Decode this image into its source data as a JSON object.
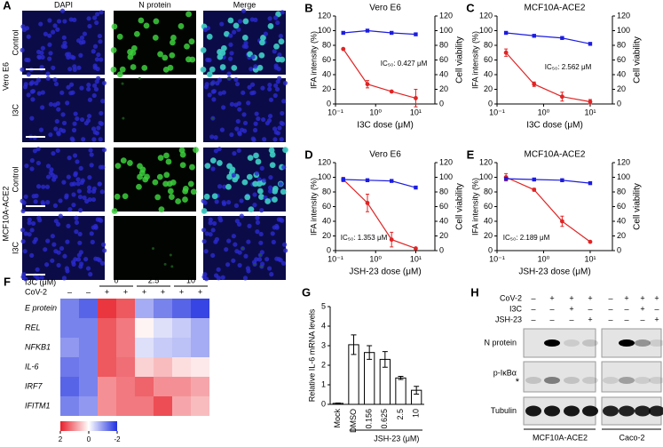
{
  "panel_a": {
    "letter": "A",
    "columns": [
      "DAPI",
      "N protein",
      "Merge"
    ],
    "groups": [
      {
        "name": "Vero E6",
        "rows": [
          "Control",
          "I3C"
        ]
      },
      {
        "name": "MCF10A-ACE2",
        "rows": [
          "Control",
          "I3C"
        ]
      }
    ]
  },
  "chart_data": [
    {
      "type": "line",
      "panel": "B",
      "title": "Vero E6",
      "x_label": "I3C dose (μM)",
      "y_label": "IFA intensity (%)",
      "y2_label": "Cell viability",
      "annotation": "IC₅₀: 0.427 μM",
      "log_x": true,
      "x": [
        0.156,
        0.625,
        2.5,
        10
      ],
      "xlim": [
        0.1,
        30
      ],
      "xticks": [
        {
          "value": 0.1,
          "label": "10⁻¹"
        },
        {
          "value": 1,
          "label": "10⁰"
        },
        {
          "value": 10,
          "label": "10¹"
        }
      ],
      "ylim": [
        0,
        120
      ],
      "yticks": [
        0,
        20,
        40,
        60,
        80,
        100,
        120
      ],
      "y2lim": [
        0,
        120
      ],
      "y2ticks": [
        0,
        20,
        40,
        60,
        80,
        100,
        120
      ],
      "series": [
        {
          "color": "#e02424",
          "values": [
            75,
            27,
            17,
            8
          ],
          "errors": [
            0,
            5,
            0,
            12
          ]
        },
        {
          "color": "#1c1ce0",
          "axis": "y2",
          "values": [
            97,
            100,
            97,
            95
          ]
        }
      ]
    },
    {
      "type": "line",
      "panel": "C",
      "title": "MCF10A-ACE2",
      "x_label": "I3C dose (μM)",
      "y_label": "IFA intensity (%)",
      "y2_label": "Cell viability",
      "annotation": "IC₅₀: 2.562 μM",
      "log_x": true,
      "x": [
        0.156,
        0.625,
        2.5,
        10
      ],
      "xlim": [
        0.1,
        30
      ],
      "xticks": [
        {
          "value": 0.1,
          "label": "10⁻¹"
        },
        {
          "value": 1,
          "label": "10⁰"
        },
        {
          "value": 10,
          "label": "10¹"
        }
      ],
      "ylim": [
        0,
        120
      ],
      "yticks": [
        0,
        20,
        40,
        60,
        80,
        100,
        120
      ],
      "y2lim": [
        0,
        120
      ],
      "y2ticks": [
        0,
        20,
        40,
        60,
        80,
        100,
        120
      ],
      "series": [
        {
          "color": "#e02424",
          "values": [
            70,
            27,
            10,
            3
          ],
          "errors": [
            5,
            3,
            6,
            3
          ]
        },
        {
          "color": "#1c1ce0",
          "axis": "y2",
          "values": [
            97,
            93,
            90,
            82
          ]
        }
      ]
    },
    {
      "type": "line",
      "panel": "D",
      "title": "Vero E6",
      "x_label": "JSH-23 dose (μM)",
      "y_label": "IFA intensity (%)",
      "y2_label": "Cell viability",
      "annotation": "IC₅₀: 1.353 μM",
      "log_x": true,
      "x": [
        0.156,
        0.625,
        2.5,
        10
      ],
      "xlim": [
        0.1,
        30
      ],
      "xticks": [
        {
          "value": 0.1,
          "label": "10⁻¹"
        },
        {
          "value": 1,
          "label": "10⁰"
        },
        {
          "value": 10,
          "label": "10¹"
        }
      ],
      "ylim": [
        0,
        120
      ],
      "yticks": [
        0,
        20,
        40,
        60,
        80,
        100,
        120
      ],
      "y2lim": [
        0,
        120
      ],
      "y2ticks": [
        0,
        20,
        40,
        60,
        80,
        100,
        120
      ],
      "series": [
        {
          "color": "#e02424",
          "values": [
            97,
            65,
            15,
            3
          ],
          "errors": [
            3,
            12,
            10,
            1
          ]
        },
        {
          "color": "#1c1ce0",
          "axis": "y2",
          "values": [
            97,
            96,
            95,
            86
          ]
        }
      ]
    },
    {
      "type": "line",
      "panel": "E",
      "title": "MCF10A-ACE2",
      "x_label": "JSH-23 dose (μM)",
      "y_label": "IFA intensity (%)",
      "y2_label": "Cell viability",
      "annotation": "IC₅₀: 2.189 μM",
      "log_x": true,
      "x": [
        0.156,
        0.625,
        2.5,
        10
      ],
      "xlim": [
        0.1,
        30
      ],
      "xticks": [
        {
          "value": 0.1,
          "label": "10⁻¹"
        },
        {
          "value": 1,
          "label": "10⁰"
        },
        {
          "value": 10,
          "label": "10¹"
        }
      ],
      "ylim": [
        0,
        120
      ],
      "yticks": [
        0,
        20,
        40,
        60,
        80,
        100,
        120
      ],
      "y2lim": [
        0,
        120
      ],
      "y2ticks": [
        0,
        20,
        40,
        60,
        80,
        100,
        120
      ],
      "series": [
        {
          "color": "#e02424",
          "values": [
            100,
            83,
            40,
            12
          ],
          "errors": [
            5,
            2,
            7,
            1
          ]
        },
        {
          "color": "#1c1ce0",
          "axis": "y2",
          "values": [
            98,
            97,
            96,
            92
          ]
        }
      ]
    },
    {
      "type": "heatmap",
      "panel": "F",
      "dose_label": "I3C (μM)",
      "dose_groups": [
        "0",
        "2.5",
        "10"
      ],
      "cov2_label": "CoV-2",
      "cov2": [
        "–",
        "–",
        "+",
        "+",
        "+",
        "+",
        "+",
        "+"
      ],
      "rows": [
        "E protein",
        "REL",
        "NFKB1",
        "IL-6",
        "IRF7",
        "IFITM1"
      ],
      "values": [
        [
          -1.2,
          -1.5,
          1.8,
          1.5,
          -0.8,
          -1.2,
          -1.5,
          -1.8
        ],
        [
          -1.2,
          -1.2,
          1.5,
          1.2,
          0.1,
          -0.3,
          -0.5,
          -0.8
        ],
        [
          -1.0,
          -1.2,
          1.5,
          1.2,
          -0.3,
          -0.5,
          -0.6,
          -0.8
        ],
        [
          -1.3,
          -1.2,
          1.5,
          1.3,
          0.4,
          0.6,
          0.3,
          0.2
        ],
        [
          -1.5,
          -1.2,
          1.0,
          1.2,
          1.4,
          1.0,
          1.0,
          0.8
        ],
        [
          -1.2,
          -1.0,
          1.0,
          1.2,
          1.2,
          1.6,
          0.8,
          0.6
        ]
      ],
      "zlim": [
        -2,
        2
      ],
      "zticks": [
        2,
        0,
        -2
      ]
    },
    {
      "type": "bar",
      "panel": "G",
      "y_label": "Relative IL-6 mRNA levels",
      "group_label": "JSH-23 (μM)",
      "categories": [
        "Mock",
        "DMSO",
        "0.156",
        "0.625",
        "2.5",
        "10"
      ],
      "values": [
        0.05,
        3.05,
        2.65,
        2.3,
        1.35,
        0.72
      ],
      "errors": [
        0.02,
        0.5,
        0.35,
        0.4,
        0.08,
        0.2
      ],
      "color": "#ffffff",
      "edge_color": "#000000",
      "ylim": [
        0,
        5
      ],
      "yticks": [
        0,
        1,
        2,
        3,
        4,
        5
      ]
    }
  ],
  "panel_h": {
    "letter": "H",
    "conditions": [
      {
        "label": "CoV-2",
        "signs": [
          "–",
          "+",
          "+",
          "+",
          "–",
          "+",
          "+",
          "+"
        ]
      },
      {
        "label": "I3C",
        "signs": [
          "–",
          "–",
          "+",
          "–",
          "–",
          "–",
          "+",
          "–"
        ]
      },
      {
        "label": "JSH-23",
        "signs": [
          "–",
          "–",
          "–",
          "+",
          "–",
          "–",
          "–",
          "+"
        ]
      }
    ],
    "bands": [
      "N protein",
      "p-IκBα",
      "Tubulin"
    ],
    "marker": "*",
    "cell_lines": [
      "MCF10A-ACE2",
      "Caco-2"
    ]
  }
}
